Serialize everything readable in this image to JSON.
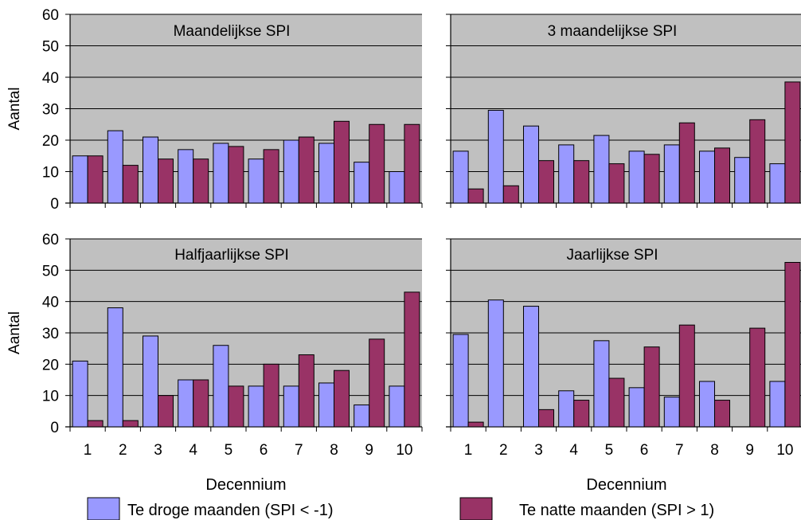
{
  "chart_data": [
    {
      "type": "bar",
      "title": "Maandelijkse SPI",
      "xlabel": "",
      "ylabel": "Aantal",
      "ylim": [
        0,
        60
      ],
      "yticks": [
        "0",
        "10",
        "20",
        "30",
        "40",
        "50",
        "60"
      ],
      "categories": [
        "1",
        "2",
        "3",
        "4",
        "5",
        "6",
        "7",
        "8",
        "9",
        "10"
      ],
      "show_xtick_labels": false,
      "series": [
        {
          "name": "Te droge maanden (SPI < -1)",
          "values": [
            15,
            23,
            21,
            17,
            19,
            14,
            20,
            19,
            13,
            10
          ]
        },
        {
          "name": "Te natte maanden (SPI > 1)",
          "values": [
            15,
            12,
            14,
            14,
            18,
            17,
            21,
            26,
            25,
            25
          ]
        }
      ]
    },
    {
      "type": "bar",
      "title": "3 maandelijkse SPI",
      "xlabel": "",
      "ylabel": "",
      "ylim": [
        0,
        60
      ],
      "categories": [
        "1",
        "2",
        "3",
        "4",
        "5",
        "6",
        "7",
        "8",
        "9",
        "10"
      ],
      "show_xtick_labels": false,
      "series": [
        {
          "name": "Te droge maanden (SPI < -1)",
          "values": [
            16.5,
            29.5,
            24.5,
            18.5,
            21.5,
            16.5,
            18.5,
            16.5,
            14.5,
            12.5
          ]
        },
        {
          "name": "Te natte maanden (SPI > 1)",
          "values": [
            4.5,
            5.5,
            13.5,
            13.5,
            12.5,
            15.5,
            25.5,
            17.5,
            26.5,
            38.5
          ]
        }
      ]
    },
    {
      "type": "bar",
      "title": "Halfjaarlijkse SPI",
      "xlabel": "Decennium",
      "ylabel": "Aantal",
      "ylim": [
        0,
        60
      ],
      "yticks": [
        "0",
        "10",
        "20",
        "30",
        "40",
        "50",
        "60"
      ],
      "categories": [
        "1",
        "2",
        "3",
        "4",
        "5",
        "6",
        "7",
        "8",
        "9",
        "10"
      ],
      "show_xtick_labels": true,
      "series": [
        {
          "name": "Te droge maanden (SPI < -1)",
          "values": [
            21,
            38,
            29,
            15,
            26,
            13,
            13,
            14,
            7,
            13
          ]
        },
        {
          "name": "Te natte maanden (SPI > 1)",
          "values": [
            2,
            2,
            10,
            15,
            13,
            20,
            23,
            18,
            28,
            43
          ]
        }
      ]
    },
    {
      "type": "bar",
      "title": "Jaarlijkse SPI",
      "xlabel": "Decennium",
      "ylabel": "",
      "ylim": [
        0,
        60
      ],
      "categories": [
        "1",
        "2",
        "3",
        "4",
        "5",
        "6",
        "7",
        "8",
        "9",
        "10"
      ],
      "show_xtick_labels": true,
      "series": [
        {
          "name": "Te droge maanden (SPI < -1)",
          "values": [
            29.5,
            40.5,
            38.5,
            11.5,
            27.5,
            12.5,
            9.5,
            14.5,
            0,
            14.5
          ]
        },
        {
          "name": "Te natte maanden (SPI > 1)",
          "values": [
            1.5,
            0,
            5.5,
            8.5,
            15.5,
            25.5,
            32.5,
            8.5,
            31.5,
            52.5
          ]
        }
      ]
    }
  ],
  "legend": {
    "items": [
      {
        "label": "Te droge maanden (SPI < -1)",
        "color": "#9999ff"
      },
      {
        "label": "Te natte maanden (SPI > 1)",
        "color": "#993366"
      }
    ]
  },
  "colors": {
    "plot_background": "#c0c0c0",
    "bar_outline": "#000000",
    "gridline": "#000000"
  }
}
